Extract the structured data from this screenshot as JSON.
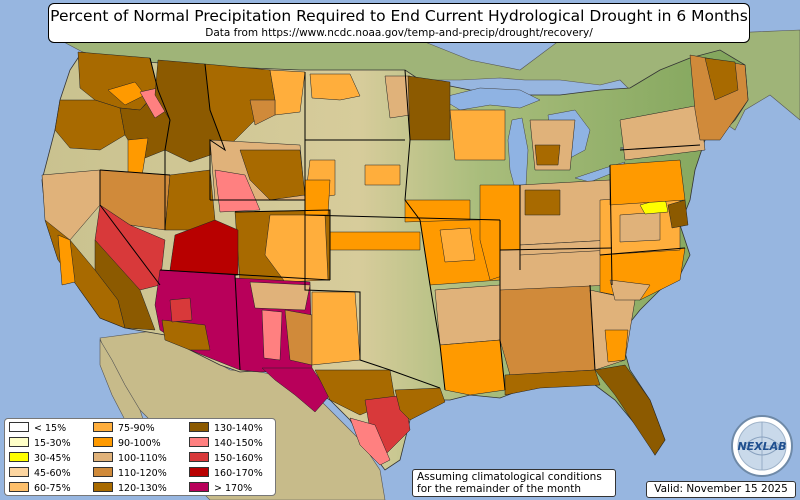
{
  "header": {
    "title": "Percent of Normal Precipitation Required to End Current Hydrological Drought in 6 Months",
    "subtitle": "Data from https://www.ncdc.noaa.gov/temp-and-precip/drought/recovery/"
  },
  "legend": {
    "items": [
      {
        "label": "< 15%",
        "color": "#ffffff"
      },
      {
        "label": "15-30%",
        "color": "#ffffc8"
      },
      {
        "label": "30-45%",
        "color": "#ffff00"
      },
      {
        "label": "45-60%",
        "color": "#fcd5a0"
      },
      {
        "label": "60-75%",
        "color": "#fdbf6b"
      },
      {
        "label": "75-90%",
        "color": "#ffae3c"
      },
      {
        "label": "90-100%",
        "color": "#ff9a00"
      },
      {
        "label": "100-110%",
        "color": "#e0b27a"
      },
      {
        "label": "110-120%",
        "color": "#d08a3a"
      },
      {
        "label": "120-130%",
        "color": "#a86a00"
      },
      {
        "label": "130-140%",
        "color": "#8c5a00"
      },
      {
        "label": "140-150%",
        "color": "#ff8080"
      },
      {
        "label": "150-160%",
        "color": "#d8393a"
      },
      {
        "label": "160-170%",
        "color": "#b80000"
      },
      {
        "label": "> 170%",
        "color": "#b8005a"
      }
    ]
  },
  "note": {
    "line1": "Assuming climatological conditions",
    "line2": "for the remainder of the month"
  },
  "valid_label": "Valid: November 15 2025",
  "logo_text": "NEXLAB",
  "colors": {
    "ocean": "#97b6e0",
    "land_green": "#8fb069",
    "land_tan": "#dcd1a4",
    "lake": "#8fb3e3"
  }
}
